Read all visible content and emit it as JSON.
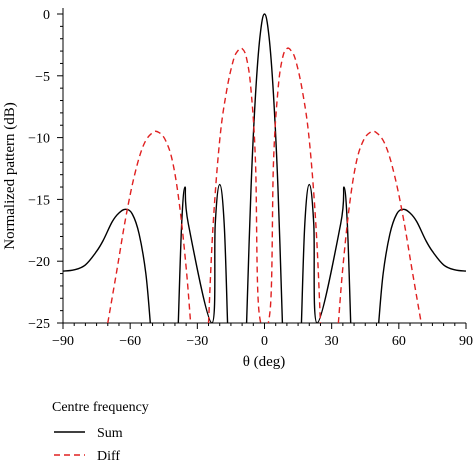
{
  "chart_data": {
    "type": "line",
    "xlabel": "θ (deg)",
    "ylabel": "Normalized pattern (dB)",
    "xlim": [
      -90,
      90
    ],
    "ylim": [
      -25,
      0
    ],
    "xticks": [
      -90,
      -60,
      -30,
      0,
      30,
      60,
      90
    ],
    "yticks": [
      0,
      -5,
      -10,
      -15,
      -20,
      -25
    ],
    "xtick_labels": [
      "−90",
      "−60",
      "−30",
      "0",
      "30",
      "60",
      "90"
    ],
    "ytick_labels": [
      "0",
      "−5",
      "−10",
      "−15",
      "−20",
      "−25"
    ],
    "legend": {
      "title": "Centre frequency",
      "placement": "below-left"
    },
    "series": [
      {
        "name": "Sum",
        "color": "#000000",
        "style": "solid",
        "x": [
          -90,
          -85,
          -80,
          -75,
          -72,
          -68,
          -65,
          -62,
          -59,
          -56,
          -53,
          -51,
          -38.5,
          -37,
          -35.5,
          -34,
          -23.5,
          -22,
          -20,
          -18,
          -16.5,
          -8,
          -6,
          -4,
          -2,
          0,
          2,
          4,
          6,
          8,
          16.5,
          18,
          20,
          22,
          23.5,
          34,
          35.5,
          37,
          38.5,
          51,
          53,
          56,
          59,
          62,
          65,
          68,
          72,
          75,
          80,
          85,
          90
        ],
        "y": [
          -20.8,
          -20.7,
          -20.3,
          -19.2,
          -18.3,
          -16.8,
          -16.1,
          -15.8,
          -16.2,
          -17.8,
          -21,
          -25,
          -25,
          -17,
          -14,
          -17,
          -25,
          -17,
          -13.8,
          -17,
          -25,
          -25,
          -14,
          -6.5,
          -1.8,
          0,
          -1.8,
          -6.5,
          -14,
          -25,
          -25,
          -17,
          -13.8,
          -17,
          -25,
          -17,
          -14,
          -17,
          -25,
          -25,
          -21,
          -17.8,
          -16.2,
          -15.8,
          -16.1,
          -16.8,
          -18.3,
          -19.2,
          -20.3,
          -20.7,
          -20.8
        ]
      },
      {
        "name": "Diff",
        "color": "#e02020",
        "style": "dashed",
        "x": [
          -70,
          -66,
          -62,
          -58,
          -54,
          -50,
          -47,
          -44,
          -41,
          -38,
          -35,
          -33,
          -25,
          -23,
          -20,
          -17,
          -14,
          -12,
          -10,
          -8,
          -6,
          -4,
          -2.5,
          2.5,
          4,
          6,
          8,
          10,
          12,
          14,
          17,
          20,
          23,
          25,
          33,
          35,
          38,
          41,
          44,
          47,
          50,
          54,
          58,
          62,
          66,
          70
        ],
        "y": [
          -25,
          -20.8,
          -16.5,
          -13,
          -10.6,
          -9.6,
          -9.6,
          -10.3,
          -12,
          -15.4,
          -20.5,
          -25,
          -25,
          -17.2,
          -10.2,
          -6.3,
          -3.8,
          -3,
          -2.8,
          -3.6,
          -6.2,
          -12.1,
          -24,
          -24,
          -12.1,
          -6.2,
          -3.6,
          -2.8,
          -3,
          -3.8,
          -6.3,
          -10.2,
          -17.2,
          -25,
          -25,
          -20.5,
          -15.4,
          -12,
          -10.3,
          -9.6,
          -9.6,
          -10.6,
          -13,
          -16.5,
          -20.8,
          -25
        ]
      }
    ]
  }
}
